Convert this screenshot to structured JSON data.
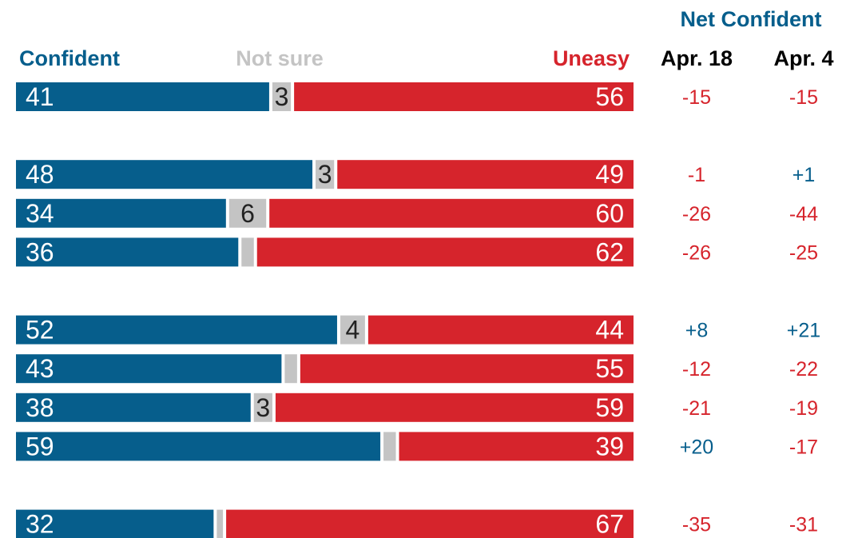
{
  "colors": {
    "confident": "#065e8c",
    "not_sure": "#c4c4c4",
    "uneasy": "#d6242c",
    "positive_net": "#065e8c",
    "negative_net": "#d6242c",
    "bar_text": "#ffffff",
    "not_sure_text": "#222222",
    "header_text": "#000000"
  },
  "chart_data": {
    "type": "bar",
    "orientation": "horizontal",
    "stacked": true,
    "legend": {
      "confident": "Confident",
      "not_sure": "Not sure",
      "uneasy": "Uneasy"
    },
    "net_title": "Net Confident",
    "net_columns": [
      "Apr. 18",
      "Apr. 4"
    ],
    "groups": [
      {
        "rows": [
          {
            "confident": 41,
            "not_sure": 3,
            "not_sure_label": "3",
            "uneasy": 56,
            "net_apr18": "-15",
            "net_apr4": "-15"
          }
        ]
      },
      {
        "rows": [
          {
            "confident": 48,
            "not_sure": 3,
            "not_sure_label": "3",
            "uneasy": 49,
            "net_apr18": "-1",
            "net_apr4": "+1"
          },
          {
            "confident": 34,
            "not_sure": 6,
            "not_sure_label": "6",
            "uneasy": 60,
            "net_apr18": "-26",
            "net_apr4": "-44"
          },
          {
            "confident": 36,
            "not_sure": 2,
            "not_sure_label": "",
            "uneasy": 62,
            "net_apr18": "-26",
            "net_apr4": "-25"
          }
        ]
      },
      {
        "rows": [
          {
            "confident": 52,
            "not_sure": 4,
            "not_sure_label": "4",
            "uneasy": 44,
            "net_apr18": "+8",
            "net_apr4": "+21"
          },
          {
            "confident": 43,
            "not_sure": 2,
            "not_sure_label": "",
            "uneasy": 55,
            "net_apr18": "-12",
            "net_apr4": "-22"
          },
          {
            "confident": 38,
            "not_sure": 3,
            "not_sure_label": "3",
            "uneasy": 59,
            "net_apr18": "-21",
            "net_apr4": "-19"
          },
          {
            "confident": 59,
            "not_sure": 2,
            "not_sure_label": "",
            "uneasy": 39,
            "net_apr18": "+20",
            "net_apr4": "-17"
          }
        ]
      },
      {
        "rows": [
          {
            "confident": 32,
            "not_sure": 1,
            "not_sure_label": "",
            "uneasy": 67,
            "net_apr18": "-35",
            "net_apr4": "-31"
          }
        ]
      }
    ]
  }
}
